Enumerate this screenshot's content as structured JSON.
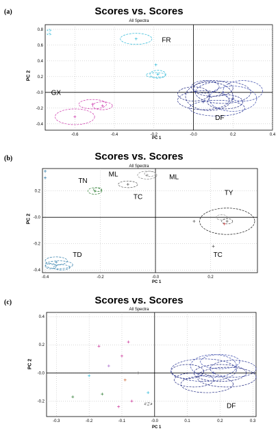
{
  "chart_data": [
    {
      "type": "scatter",
      "panel_label": "(a)",
      "title": "Scores vs. Scores",
      "subtitle": "All Spectra",
      "xlabel": "PC 1",
      "ylabel": "PC 2",
      "xlim": [
        -0.75,
        0.4
      ],
      "ylim": [
        -0.48,
        0.86
      ],
      "xticks": [
        "-0.6",
        "-0.4",
        "-0.2",
        "-0.0",
        "0.2",
        "0.4"
      ],
      "xtick_values": [
        -0.6,
        -0.4,
        -0.2,
        0.0,
        0.2,
        0.4
      ],
      "yticks": [
        "0.8",
        "0.6",
        "0.4",
        "0.2",
        "-0.0",
        "-0.2",
        "-0.4"
      ],
      "ytick_values": [
        0.8,
        0.6,
        0.4,
        0.2,
        0.0,
        -0.2,
        -0.4
      ],
      "grid": true,
      "annotations": [
        {
          "text": "FR",
          "x": -0.16,
          "y": 0.64
        },
        {
          "text": "GX",
          "x": -0.72,
          "y": -0.03
        },
        {
          "text": "DF",
          "x": 0.11,
          "y": -0.35
        }
      ],
      "ellipses": [
        {
          "group": "FR",
          "color": "#2ab8d8",
          "cx": -0.29,
          "cy": 0.68,
          "rx": 0.08,
          "ry": 0.07
        },
        {
          "group": "FR",
          "color": "#2ab8d8",
          "cx": -0.18,
          "cy": 0.23,
          "rx": 0.04,
          "ry": 0.05
        },
        {
          "group": "FR",
          "color": "#2ab8d8",
          "cx": -0.19,
          "cy": 0.22,
          "rx": 0.05,
          "ry": 0.03
        },
        {
          "group": "FR",
          "color": "#2ab8d8",
          "cx": -0.73,
          "cy": 0.79,
          "rx": 0.01,
          "ry": 0.01
        },
        {
          "group": "FR",
          "color": "#2ab8d8",
          "cx": -0.73,
          "cy": 0.74,
          "rx": 0.01,
          "ry": 0.01
        },
        {
          "group": "GX",
          "color": "#cc33aa",
          "cx": -0.6,
          "cy": -0.31,
          "rx": 0.1,
          "ry": 0.1
        },
        {
          "group": "GX",
          "color": "#cc33aa",
          "cx": -0.51,
          "cy": -0.15,
          "rx": 0.07,
          "ry": 0.06
        },
        {
          "group": "GX",
          "color": "#cc33aa",
          "cx": -0.46,
          "cy": -0.17,
          "rx": 0.05,
          "ry": 0.05
        },
        {
          "group": "DF",
          "color": "#1a237e",
          "cx": 0.08,
          "cy": -0.05,
          "rx": 0.12,
          "ry": 0.18
        },
        {
          "group": "DF",
          "color": "#283593",
          "cx": 0.15,
          "cy": 0.0,
          "rx": 0.14,
          "ry": 0.14
        },
        {
          "group": "DF",
          "color": "#1a237e",
          "cx": 0.05,
          "cy": -0.1,
          "rx": 0.13,
          "ry": 0.12
        },
        {
          "group": "DF",
          "color": "#3949ab",
          "cx": 0.2,
          "cy": -0.08,
          "rx": 0.12,
          "ry": 0.16
        },
        {
          "group": "DF",
          "color": "#1a237e",
          "cx": 0.1,
          "cy": 0.05,
          "rx": 0.1,
          "ry": 0.1
        },
        {
          "group": "DF",
          "color": "#283593",
          "cx": 0.12,
          "cy": -0.2,
          "rx": 0.14,
          "ry": 0.1
        },
        {
          "group": "DF",
          "color": "#1a237e",
          "cx": 0.0,
          "cy": -0.02,
          "rx": 0.08,
          "ry": 0.09
        },
        {
          "group": "DF",
          "color": "#3949ab",
          "cx": 0.25,
          "cy": 0.02,
          "rx": 0.1,
          "ry": 0.13
        },
        {
          "group": "DF",
          "color": "#1a237e",
          "cx": 0.16,
          "cy": -0.12,
          "rx": 0.09,
          "ry": 0.09
        },
        {
          "group": "DF",
          "color": "#283593",
          "cx": 0.06,
          "cy": 0.07,
          "rx": 0.07,
          "ry": 0.08
        }
      ],
      "points": [
        {
          "color": "#2ab8d8",
          "x": -0.29,
          "y": 0.68
        },
        {
          "color": "#2ab8d8",
          "x": -0.19,
          "y": 0.35
        },
        {
          "color": "#2ab8d8",
          "x": -0.18,
          "y": 0.23
        },
        {
          "color": "#cc33aa",
          "x": -0.6,
          "y": -0.31
        },
        {
          "color": "#cc33aa",
          "x": -0.51,
          "y": -0.15
        },
        {
          "color": "#cc33aa",
          "x": -0.46,
          "y": -0.17
        },
        {
          "color": "#1a237e",
          "x": 0.08,
          "y": -0.05
        },
        {
          "color": "#1a237e",
          "x": 0.15,
          "y": 0.0
        },
        {
          "color": "#1a237e",
          "x": 0.2,
          "y": -0.08
        },
        {
          "color": "#1a237e",
          "x": 0.05,
          "y": -0.12
        }
      ]
    },
    {
      "type": "scatter",
      "panel_label": "(b)",
      "title": "Scores vs. Scores",
      "subtitle": "All Spectra",
      "xlabel": "PC 1",
      "ylabel": "PC 2",
      "xlim": [
        -0.41,
        0.37
      ],
      "ylim": [
        -0.42,
        0.37
      ],
      "xticks": [
        "-0.4",
        "-0.2",
        "-0.0",
        "0.2"
      ],
      "xtick_values": [
        -0.4,
        -0.2,
        0.0,
        0.2
      ],
      "yticks": [
        "0.2",
        "-0.0",
        "-0.2",
        "-0.4"
      ],
      "ytick_values": [
        0.2,
        0.0,
        -0.2,
        -0.4
      ],
      "grid": true,
      "annotations": [
        {
          "text": "TN",
          "x": -0.28,
          "y": 0.26
        },
        {
          "text": "ML",
          "x": -0.17,
          "y": 0.31
        },
        {
          "text": "ML",
          "x": 0.05,
          "y": 0.29
        },
        {
          "text": "TC",
          "x": -0.08,
          "y": 0.14
        },
        {
          "text": "TY",
          "x": 0.25,
          "y": 0.17
        },
        {
          "text": "TC",
          "x": 0.21,
          "y": -0.3
        },
        {
          "text": "TD",
          "x": -0.3,
          "y": -0.3
        }
      ],
      "ellipses": [
        {
          "group": "TN",
          "color": "#2e7d32",
          "cx": -0.22,
          "cy": 0.2,
          "rx": 0.025,
          "ry": 0.025
        },
        {
          "group": "TN",
          "color": "#2e7d32",
          "cx": -0.21,
          "cy": 0.21,
          "rx": 0.015,
          "ry": 0.015
        },
        {
          "group": "ML",
          "color": "#888888",
          "cx": -0.03,
          "cy": 0.32,
          "rx": 0.035,
          "ry": 0.03
        },
        {
          "group": "ML",
          "color": "#888888",
          "cx": -0.02,
          "cy": 0.33,
          "rx": 0.02,
          "ry": 0.02
        },
        {
          "group": "TC",
          "color": "#555555",
          "cx": -0.1,
          "cy": 0.25,
          "rx": 0.035,
          "ry": 0.025
        },
        {
          "group": "TY",
          "color": "#111111",
          "cx": 0.26,
          "cy": -0.03,
          "rx": 0.1,
          "ry": 0.1
        },
        {
          "group": "TY",
          "color": "#555555",
          "cx": 0.26,
          "cy": -0.03,
          "rx": 0.02,
          "ry": 0.02
        },
        {
          "group": "TY",
          "color": "#888888",
          "cx": 0.24,
          "cy": 0.0,
          "rx": 0.02,
          "ry": 0.02
        },
        {
          "group": "TD",
          "color": "#2a7aa8",
          "cx": -0.36,
          "cy": -0.33,
          "rx": 0.04,
          "ry": 0.03
        },
        {
          "group": "TD",
          "color": "#2a7aa8",
          "cx": -0.35,
          "cy": -0.36,
          "rx": 0.05,
          "ry": 0.03
        },
        {
          "group": "TD",
          "color": "#2a7aa8",
          "cx": -0.34,
          "cy": -0.38,
          "rx": 0.03,
          "ry": 0.02
        },
        {
          "group": "TD",
          "color": "#2a7aa8",
          "cx": -0.38,
          "cy": -0.37,
          "rx": 0.02,
          "ry": 0.02
        }
      ],
      "points": [
        {
          "color": "#2e7d32",
          "x": -0.22,
          "y": 0.2
        },
        {
          "color": "#888888",
          "x": -0.03,
          "y": 0.32
        },
        {
          "color": "#555555",
          "x": -0.1,
          "y": 0.25
        },
        {
          "color": "#555555",
          "x": 0.26,
          "y": -0.03
        },
        {
          "color": "#cc3333",
          "x": 0.25,
          "y": -0.05
        },
        {
          "color": "#555555",
          "x": 0.21,
          "y": -0.22
        },
        {
          "color": "#555555",
          "x": 0.14,
          "y": -0.03
        },
        {
          "color": "#2a7aa8",
          "x": -0.36,
          "y": -0.34
        },
        {
          "color": "#2a7aa8",
          "x": -0.4,
          "y": 0.35
        },
        {
          "color": "#2a7aa8",
          "x": -0.4,
          "y": 0.3
        }
      ]
    },
    {
      "type": "scatter",
      "panel_label": "(c)",
      "title": "Scores vs. Scores",
      "subtitle": "All Spectra",
      "xlabel": "PC 1",
      "ylabel": "PC 2",
      "xlim": [
        -0.33,
        0.31
      ],
      "ylim": [
        -0.31,
        0.43
      ],
      "xticks": [
        "-0.3",
        "-0.2",
        "-0.1",
        "-0.0",
        "0.1",
        "0.2",
        "0.3"
      ],
      "xtick_values": [
        -0.3,
        -0.2,
        -0.1,
        0.0,
        0.1,
        0.2,
        0.3
      ],
      "yticks": [
        "0.4",
        "0.2",
        "-0.0",
        "-0.2"
      ],
      "ytick_values": [
        0.4,
        0.2,
        0.0,
        -0.2
      ],
      "grid": true,
      "annotations": [
        {
          "text": "DF",
          "x": 0.22,
          "y": -0.25
        }
      ],
      "ellipses": [
        {
          "group": "DF",
          "color": "#1a237e",
          "cx": 0.2,
          "cy": 0.0,
          "rx": 0.08,
          "ry": 0.06
        },
        {
          "group": "DF",
          "color": "#283593",
          "cx": 0.15,
          "cy": 0.02,
          "rx": 0.1,
          "ry": 0.08
        },
        {
          "group": "DF",
          "color": "#1a237e",
          "cx": 0.22,
          "cy": -0.03,
          "rx": 0.09,
          "ry": 0.07
        },
        {
          "group": "DF",
          "color": "#3949ab",
          "cx": 0.18,
          "cy": 0.05,
          "rx": 0.07,
          "ry": 0.08
        },
        {
          "group": "DF",
          "color": "#1a237e",
          "cx": 0.12,
          "cy": -0.05,
          "rx": 0.06,
          "ry": 0.05
        },
        {
          "group": "DF",
          "color": "#283593",
          "cx": 0.24,
          "cy": 0.03,
          "rx": 0.07,
          "ry": 0.06
        },
        {
          "group": "DF",
          "color": "#1a237e",
          "cx": 0.16,
          "cy": -0.08,
          "rx": 0.08,
          "ry": 0.06
        },
        {
          "group": "DF",
          "color": "#3949ab",
          "cx": 0.2,
          "cy": 0.08,
          "rx": 0.06,
          "ry": 0.05
        },
        {
          "group": "DF",
          "color": "#1a237e",
          "cx": 0.1,
          "cy": 0.01,
          "rx": 0.05,
          "ry": 0.05
        },
        {
          "group": "DF",
          "color": "#333333",
          "cx": -0.02,
          "cy": -0.22,
          "rx": 0.012,
          "ry": 0.008
        }
      ],
      "points": [
        {
          "color": "#cc3399",
          "x": -0.17,
          "y": 0.19
        },
        {
          "color": "#cc3399",
          "x": -0.1,
          "y": 0.12
        },
        {
          "color": "#cc3399",
          "x": -0.08,
          "y": 0.22
        },
        {
          "color": "#aa66cc",
          "x": -0.14,
          "y": 0.05
        },
        {
          "color": "#2ab8d8",
          "x": -0.2,
          "y": -0.02
        },
        {
          "color": "#2e7d32",
          "x": -0.16,
          "y": -0.15
        },
        {
          "color": "#cc6633",
          "x": -0.09,
          "y": -0.05
        },
        {
          "color": "#cc3399",
          "x": -0.11,
          "y": -0.24
        },
        {
          "color": "#2ab8d8",
          "x": -0.02,
          "y": -0.14
        },
        {
          "color": "#2e7d32",
          "x": -0.25,
          "y": -0.17
        },
        {
          "color": "#cc3399",
          "x": -0.07,
          "y": -0.2
        },
        {
          "color": "#555555",
          "x": -0.05,
          "y": 0.0
        },
        {
          "color": "#1a237e",
          "x": 0.18,
          "y": 0.0
        }
      ]
    }
  ]
}
